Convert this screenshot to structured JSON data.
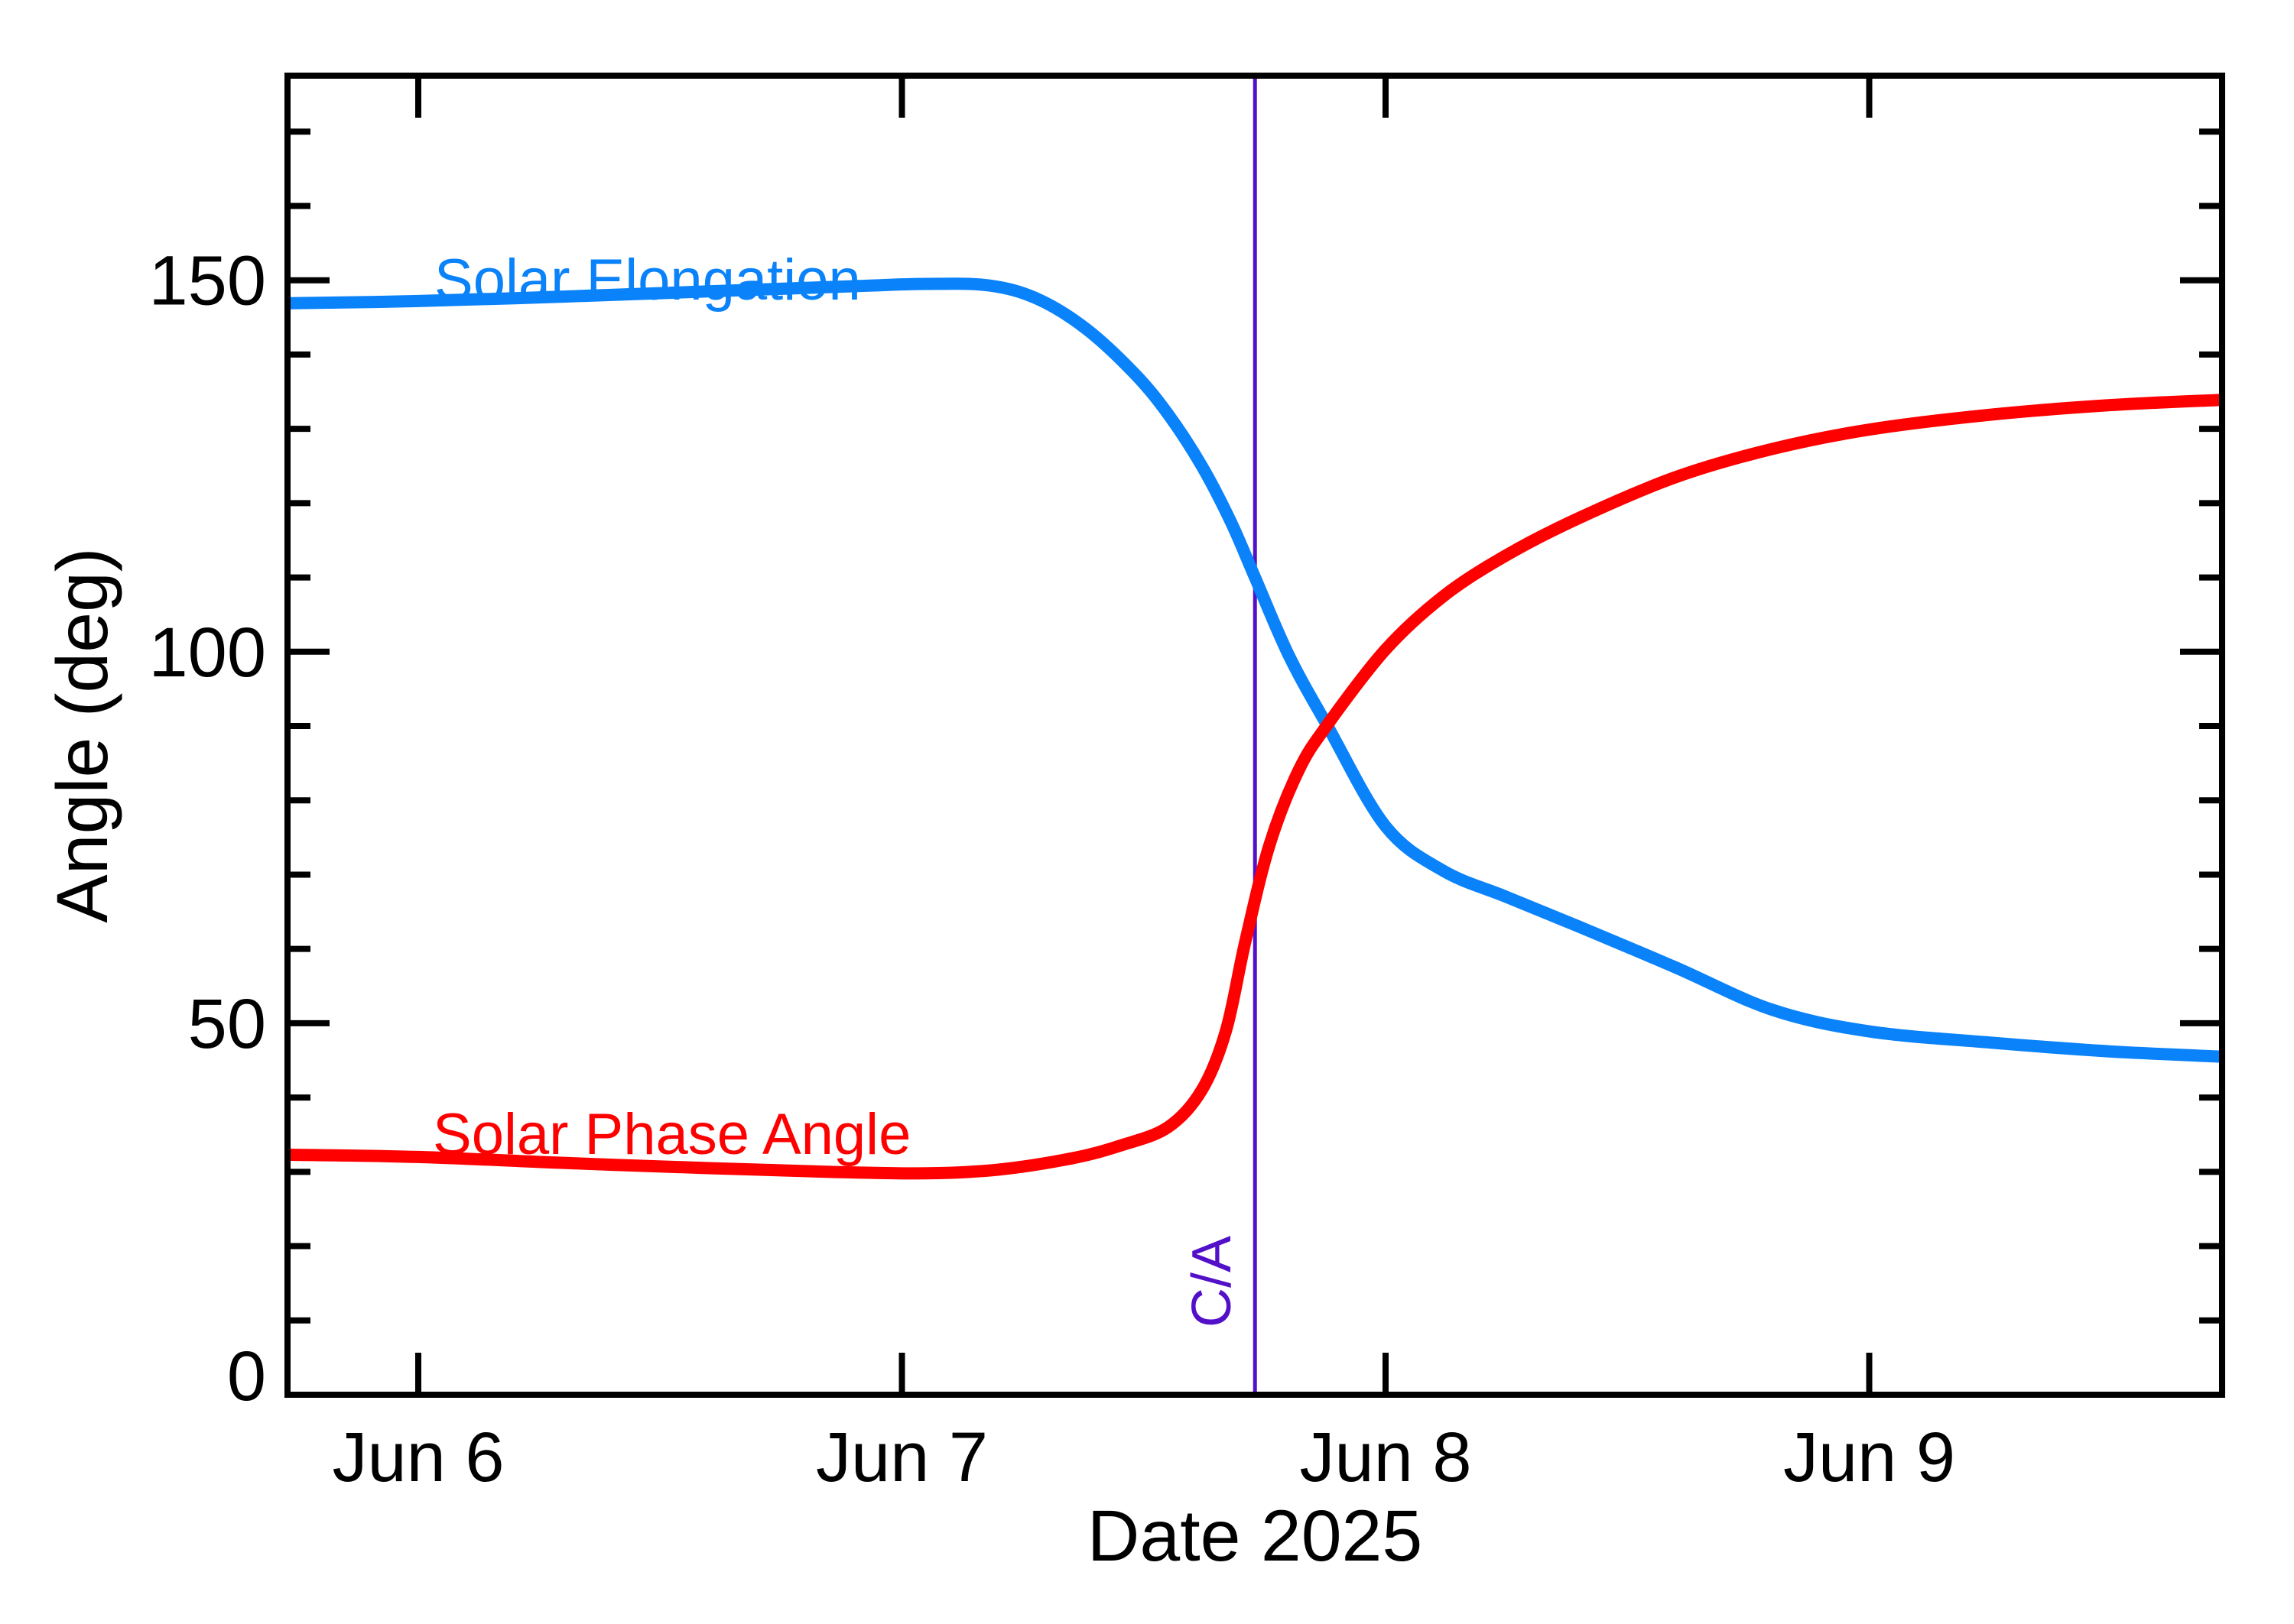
{
  "chart_data": {
    "type": "line",
    "title": "",
    "xlabel": "Date 2025",
    "ylabel": "Angle (deg)",
    "x_axis": {
      "unit": "days after 2025 Jun 6 00:00",
      "tick_days": [
        0,
        1,
        2,
        3
      ],
      "tick_labels": [
        "Jun 6",
        "Jun 7",
        "Jun 8",
        "Jun 9"
      ],
      "range_days": [
        -0.2704,
        3.7296
      ]
    },
    "y_axis": {
      "major_ticks": [
        0,
        50,
        100,
        150
      ],
      "major_tick_labels": [
        "0",
        "50",
        "100",
        "150"
      ],
      "minor_step": 10,
      "range": [
        0,
        177.5
      ],
      "grid": false
    },
    "legend_position": "inline-labels",
    "series": [
      {
        "name": "Solar Elongation",
        "color": "#0a82fa",
        "x": [
          -0.27,
          0.0,
          0.3,
          0.6,
          0.9,
          1.05,
          1.18,
          1.28,
          1.38,
          1.48,
          1.55,
          1.62,
          1.68,
          1.73,
          1.8,
          1.88,
          2.0,
          2.12,
          2.25,
          2.4,
          2.6,
          2.8,
          3.0,
          3.25,
          3.5,
          3.729
        ],
        "y": [
          146.9,
          147.2,
          147.8,
          148.5,
          149.2,
          149.5,
          149.3,
          147.5,
          143.5,
          137.5,
          132.0,
          125.0,
          117.5,
          110.0,
          99.5,
          90.0,
          76.5,
          70.5,
          67.0,
          63.0,
          57.5,
          51.8,
          48.9,
          47.4,
          46.2,
          45.5
        ]
      },
      {
        "name": "Solar Phase Angle",
        "color": "#ff0000",
        "x": [
          -0.27,
          0.0,
          0.3,
          0.6,
          0.85,
          1.05,
          1.2,
          1.35,
          1.45,
          1.55,
          1.62,
          1.67,
          1.71,
          1.76,
          1.82,
          1.88,
          2.0,
          2.12,
          2.25,
          2.4,
          2.6,
          2.8,
          3.0,
          3.25,
          3.5,
          3.729
        ],
        "y": [
          32.3,
          32.0,
          31.2,
          30.5,
          30.0,
          29.8,
          30.3,
          31.8,
          33.5,
          36.0,
          41.0,
          49.0,
          61.0,
          74.0,
          84.0,
          90.2,
          100.3,
          107.5,
          113.0,
          118.0,
          123.5,
          127.3,
          129.9,
          131.9,
          133.2,
          133.9
        ]
      }
    ],
    "annotations": [
      {
        "label": "C/A",
        "x_day": 1.73,
        "color": "#5211c9"
      }
    ]
  },
  "axis_style": {
    "color": "#000000"
  }
}
